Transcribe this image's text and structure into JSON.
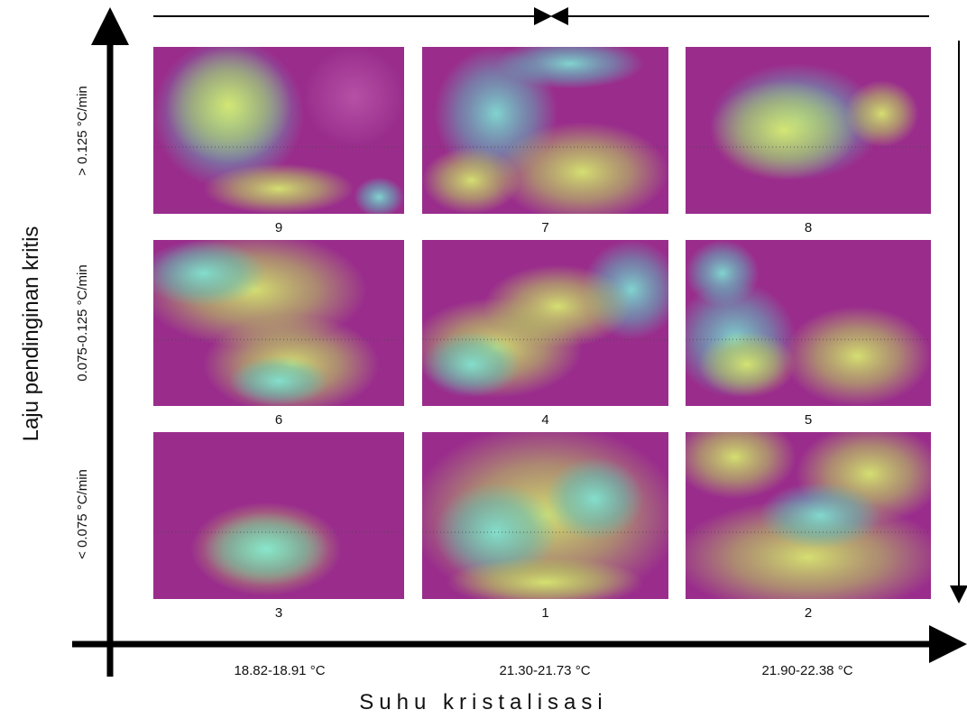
{
  "y_axis_title": "Laju pendinginan kritis",
  "x_axis_title": "Suhu kristalisasi",
  "row_labels": [
    "> 0.125 °C/min",
    "0.075-0.125 °C/min",
    "< 0.075 °C/min"
  ],
  "column_labels": [
    "18.82-18.91 °C",
    "21.30-21.73 °C",
    "21.90-22.38 °C"
  ],
  "panels": [
    {
      "label": "9"
    },
    {
      "label": "7"
    },
    {
      "label": "8"
    },
    {
      "label": "6"
    },
    {
      "label": "4"
    },
    {
      "label": "5"
    },
    {
      "label": "3"
    },
    {
      "label": "1"
    },
    {
      "label": "2"
    }
  ]
}
